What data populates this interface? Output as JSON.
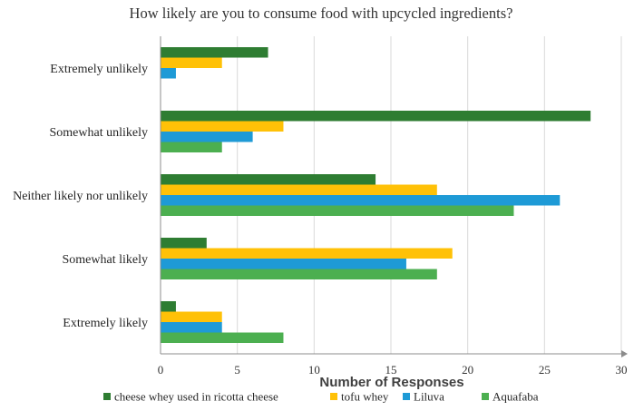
{
  "chart_data": {
    "type": "bar",
    "orientation": "horizontal",
    "title": "How likely are you to consume food with upcycled ingredients?",
    "xlabel": "Number of Responses",
    "ylabel": "",
    "xlim": [
      0,
      30
    ],
    "xticks": [
      "0",
      "5",
      "10",
      "15",
      "20",
      "25",
      "30"
    ],
    "grid": true,
    "legend_position": "bottom",
    "categories": [
      "Extremely unlikely",
      "Somewhat unlikely",
      "Neither likely nor unlikely",
      "Somewhat likely",
      "Extremely likely"
    ],
    "series": [
      {
        "name": "cheese whey used in ricotta cheese",
        "color": "#2e7d32",
        "values": [
          7,
          28,
          14,
          3,
          1
        ]
      },
      {
        "name": "tofu whey",
        "color": "#ffc107",
        "values": [
          4,
          8,
          18,
          19,
          4
        ]
      },
      {
        "name": "Liluva",
        "color": "#1e9ad6",
        "values": [
          1,
          6,
          26,
          16,
          4
        ]
      },
      {
        "name": "Aquafaba",
        "color": "#4caf50",
        "values": [
          0,
          4,
          23,
          18,
          8
        ]
      }
    ]
  }
}
